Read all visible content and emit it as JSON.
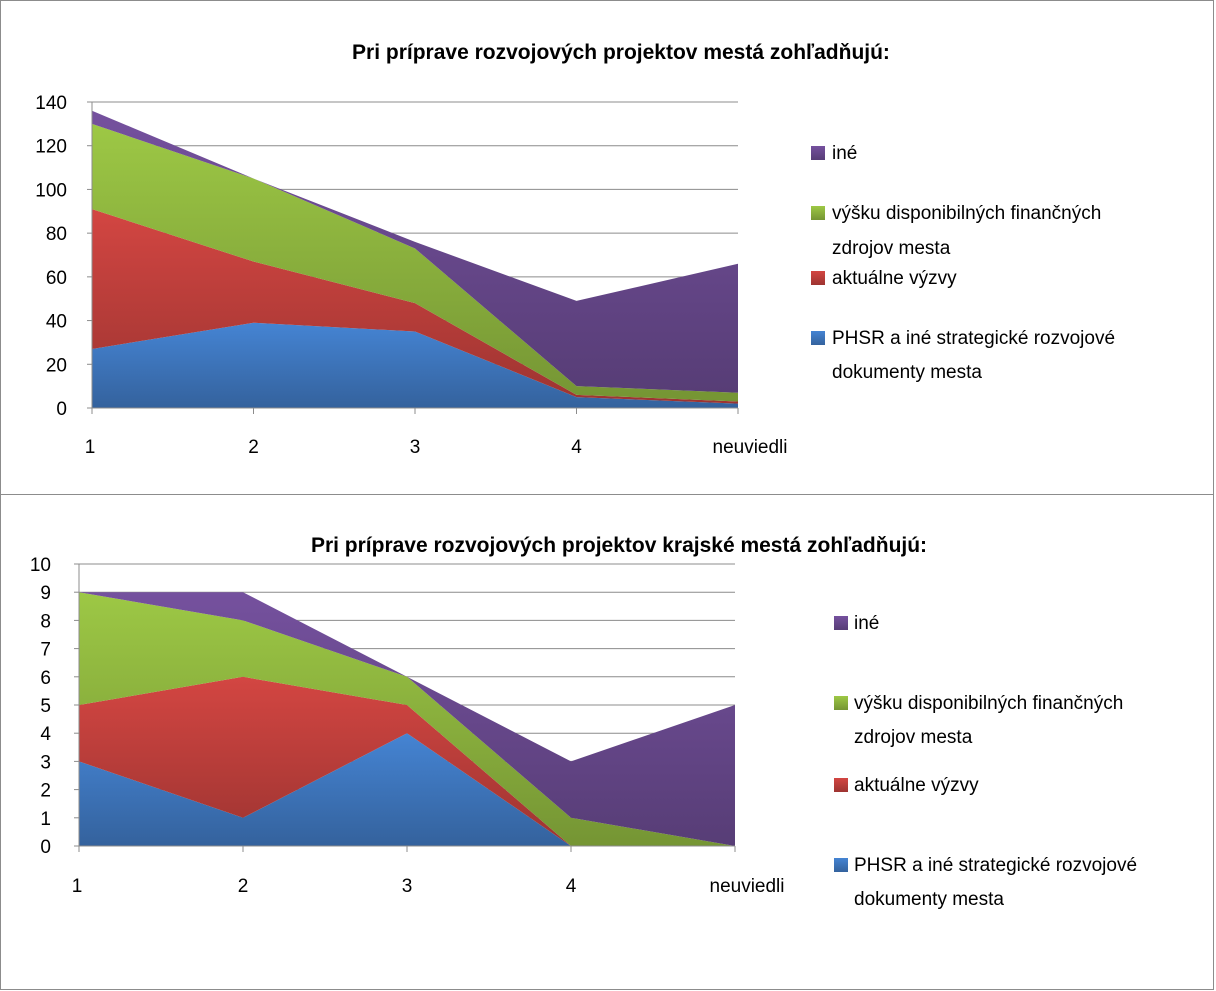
{
  "chart_data": [
    {
      "type": "area",
      "stacked": true,
      "title": "Pri príprave rozvojových projektov mestá zohľadňujú:",
      "xlabel": "",
      "ylabel": "",
      "categories": [
        "1",
        "2",
        "3",
        "4",
        "neuviedli"
      ],
      "ylim": [
        0,
        140
      ],
      "yticks": [
        "0",
        "20",
        "40",
        "60",
        "80",
        "100",
        "120",
        "140"
      ],
      "grid": true,
      "legend_position": "right",
      "series": [
        {
          "name": "PHSR a iné strategické rozvojové dokumenty mesta",
          "values": [
            27,
            39,
            35,
            5,
            2
          ],
          "color": "#3f78c0"
        },
        {
          "name": "aktuálne výzvy",
          "values": [
            64,
            28,
            13,
            1,
            1
          ],
          "color": "#c0403c"
        },
        {
          "name": "výšku disponibilných finančných zdrojov mesta",
          "values": [
            39,
            38,
            25,
            4,
            4
          ],
          "color": "#8fb63f"
        },
        {
          "name": "iné",
          "values": [
            6,
            0,
            3,
            39,
            59
          ],
          "color": "#6a4a90"
        }
      ],
      "legend_order": [
        "iné",
        "výšku disponibilných finančných zdrojov mesta",
        "aktuálne výzvy",
        "PHSR a iné strategické rozvojové dokumenty mesta"
      ]
    },
    {
      "type": "area",
      "stacked": true,
      "title": "Pri príprave rozvojových projektov krajské mestá zohľadňujú:",
      "xlabel": "",
      "ylabel": "",
      "categories": [
        "1",
        "2",
        "3",
        "4",
        "neuviedli"
      ],
      "ylim": [
        0,
        10
      ],
      "yticks": [
        "0",
        "1",
        "2",
        "3",
        "4",
        "5",
        "6",
        "7",
        "8",
        "9",
        "10"
      ],
      "grid": true,
      "legend_position": "right",
      "series": [
        {
          "name": "PHSR a iné strategické rozvojové dokumenty mesta",
          "values": [
            3,
            1,
            4,
            0,
            0
          ],
          "color": "#3f78c0"
        },
        {
          "name": "aktuálne výzvy",
          "values": [
            2,
            5,
            1,
            0,
            0
          ],
          "color": "#c0403c"
        },
        {
          "name": "výšku disponibilných finančných zdrojov mesta",
          "values": [
            4,
            2,
            1,
            1,
            0
          ],
          "color": "#8fb63f"
        },
        {
          "name": "iné",
          "values": [
            0,
            1,
            0,
            2,
            5
          ],
          "color": "#6a4a90"
        }
      ],
      "legend_order": [
        "iné",
        "výšku disponibilných finančných zdrojov mesta",
        "aktuálne výzvy",
        "PHSR a iné strategické rozvojové dokumenty mesta"
      ]
    }
  ]
}
